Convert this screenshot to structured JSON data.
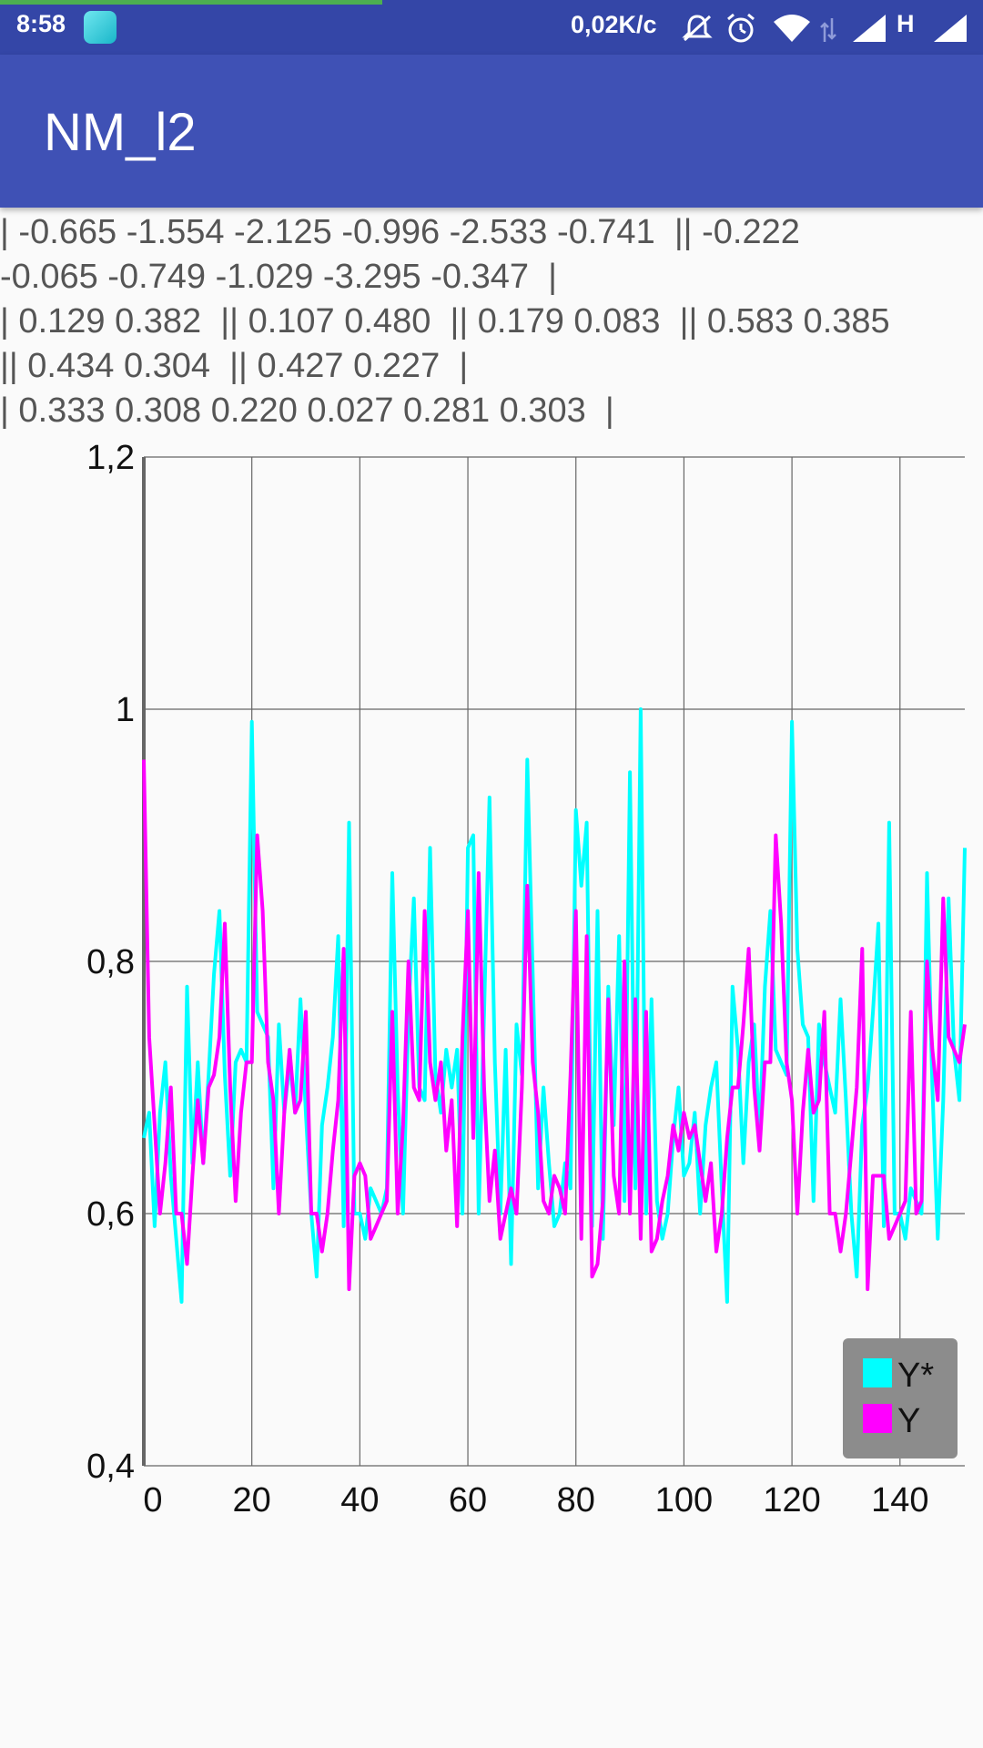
{
  "status_bar": {
    "time": "8:58",
    "network_speed": "0,02K/c",
    "network_type": "H",
    "icons": [
      "app-icon",
      "mute-icon",
      "alarm-icon",
      "wifi-icon",
      "data-arrows-icon",
      "signal-icon",
      "signal-icon-2"
    ],
    "background_color": "#3446a7",
    "progress_color": "#4caf50"
  },
  "app_bar": {
    "title": "NM_l2",
    "color": "#3f51b5"
  },
  "info_lines": [
    "| -0.665 -1.554 -2.125 -0.996 -2.533 -0.741  || -0.222",
    "-0.065 -0.749 -1.029 -3.295 -0.347  |",
    "| 0.129 0.382  || 0.107 0.480  || 0.179 0.083  || 0.583 0.385",
    "|| 0.434 0.304  || 0.427 0.227  |",
    "| 0.333 0.308 0.220 0.027 0.281 0.303  |"
  ],
  "chart_data": {
    "type": "line",
    "xlim": [
      0,
      152
    ],
    "ylim": [
      0.4,
      1.2
    ],
    "x_ticks": [
      0,
      20,
      40,
      60,
      80,
      100,
      120,
      140
    ],
    "x_tick_labels": [
      "0",
      "20",
      "40",
      "60",
      "80",
      "100",
      "120",
      "140"
    ],
    "y_ticks": [
      0.4,
      0.6,
      0.8,
      1.0,
      1.2
    ],
    "y_tick_labels": [
      "0,4",
      "0,6",
      "0,8",
      "1",
      "1,2"
    ],
    "grid": true,
    "legend_position": "bottom-right",
    "legend_background": "#8c8c8c",
    "x": [
      0,
      1,
      2,
      3,
      4,
      5,
      6,
      7,
      8,
      9,
      10,
      11,
      12,
      13,
      14,
      15,
      16,
      17,
      18,
      19,
      20,
      21,
      22,
      23,
      24,
      25,
      26,
      27,
      28,
      29,
      30,
      31,
      32,
      33,
      34,
      35,
      36,
      37,
      38,
      39,
      40,
      41,
      42,
      43,
      44,
      45,
      46,
      47,
      48,
      49,
      50,
      51,
      52,
      53,
      54,
      55,
      56,
      57,
      58,
      59,
      60,
      61,
      62,
      63,
      64,
      65,
      66,
      67,
      68,
      69,
      70,
      71,
      72,
      73,
      74,
      75,
      76,
      77,
      78,
      79,
      80,
      81,
      82,
      83,
      84,
      85,
      86,
      87,
      88,
      89,
      90,
      91,
      92,
      93,
      94,
      95,
      96,
      97,
      98,
      99,
      100,
      101,
      102,
      103,
      104,
      105,
      106,
      107,
      108,
      109,
      110,
      111,
      112,
      113,
      114,
      115,
      116,
      117,
      118,
      119,
      120,
      121,
      122,
      123,
      124,
      125,
      126,
      127,
      128,
      129,
      130,
      131,
      132,
      133,
      134,
      135,
      136,
      137,
      138,
      139,
      140,
      141,
      142,
      143,
      144,
      145,
      146,
      147,
      148,
      149,
      150,
      151,
      152
    ],
    "series": [
      {
        "name": "Y*",
        "color": "#00ffff",
        "values": [
          0.66,
          0.68,
          0.59,
          0.68,
          0.72,
          0.63,
          0.58,
          0.53,
          0.78,
          0.64,
          0.72,
          0.64,
          0.71,
          0.79,
          0.84,
          0.71,
          0.63,
          0.72,
          0.73,
          0.72,
          0.99,
          0.76,
          0.75,
          0.74,
          0.62,
          0.75,
          0.68,
          0.72,
          0.68,
          0.77,
          0.68,
          0.6,
          0.55,
          0.67,
          0.7,
          0.74,
          0.82,
          0.59,
          0.91,
          0.6,
          0.6,
          0.58,
          0.62,
          0.61,
          0.6,
          0.62,
          0.87,
          0.7,
          0.6,
          0.76,
          0.85,
          0.7,
          0.69,
          0.89,
          0.71,
          0.68,
          0.73,
          0.7,
          0.73,
          0.6,
          0.89,
          0.9,
          0.6,
          0.76,
          0.93,
          0.72,
          0.6,
          0.73,
          0.56,
          0.75,
          0.71,
          0.96,
          0.79,
          0.62,
          0.7,
          0.64,
          0.59,
          0.6,
          0.64,
          0.62,
          0.92,
          0.86,
          0.91,
          0.59,
          0.84,
          0.58,
          0.78,
          0.67,
          0.82,
          0.61,
          0.95,
          0.62,
          1.0,
          0.6,
          0.77,
          0.61,
          0.58,
          0.6,
          0.66,
          0.7,
          0.63,
          0.64,
          0.68,
          0.6,
          0.67,
          0.7,
          0.72,
          0.62,
          0.53,
          0.78,
          0.73,
          0.64,
          0.72,
          0.75,
          0.66,
          0.78,
          0.84,
          0.73,
          0.72,
          0.71,
          0.99,
          0.81,
          0.75,
          0.74,
          0.61,
          0.75,
          0.72,
          0.7,
          0.68,
          0.77,
          0.69,
          0.6,
          0.55,
          0.67,
          0.7,
          0.76,
          0.83,
          0.59,
          0.91,
          0.6,
          0.6,
          0.58,
          0.62,
          0.61,
          0.6,
          0.87,
          0.7,
          0.58,
          0.69,
          0.85,
          0.73,
          0.69,
          0.89
        ]
      },
      {
        "name": "Y",
        "color": "#ff00ff",
        "values": [
          0.96,
          0.74,
          0.67,
          0.6,
          0.64,
          0.7,
          0.6,
          0.6,
          0.56,
          0.63,
          0.69,
          0.64,
          0.7,
          0.71,
          0.74,
          0.83,
          0.7,
          0.61,
          0.68,
          0.72,
          0.72,
          0.9,
          0.84,
          0.72,
          0.69,
          0.6,
          0.68,
          0.73,
          0.68,
          0.69,
          0.76,
          0.6,
          0.6,
          0.57,
          0.6,
          0.65,
          0.69,
          0.81,
          0.54,
          0.63,
          0.64,
          0.63,
          0.58,
          0.59,
          0.6,
          0.61,
          0.76,
          0.6,
          0.67,
          0.8,
          0.7,
          0.69,
          0.84,
          0.72,
          0.69,
          0.72,
          0.65,
          0.69,
          0.59,
          0.74,
          0.84,
          0.66,
          0.87,
          0.7,
          0.61,
          0.65,
          0.58,
          0.6,
          0.62,
          0.6,
          0.7,
          0.86,
          0.72,
          0.68,
          0.61,
          0.6,
          0.63,
          0.62,
          0.6,
          0.71,
          0.84,
          0.58,
          0.82,
          0.55,
          0.56,
          0.61,
          0.77,
          0.63,
          0.6,
          0.8,
          0.6,
          0.77,
          0.58,
          0.76,
          0.57,
          0.58,
          0.61,
          0.63,
          0.67,
          0.65,
          0.68,
          0.66,
          0.67,
          0.64,
          0.61,
          0.64,
          0.57,
          0.6,
          0.66,
          0.7,
          0.7,
          0.75,
          0.81,
          0.7,
          0.65,
          0.72,
          0.72,
          0.9,
          0.83,
          0.72,
          0.69,
          0.6,
          0.68,
          0.73,
          0.68,
          0.69,
          0.76,
          0.6,
          0.6,
          0.57,
          0.6,
          0.65,
          0.7,
          0.81,
          0.54,
          0.63,
          0.63,
          0.63,
          0.58,
          0.59,
          0.6,
          0.61,
          0.76,
          0.6,
          0.61,
          0.8,
          0.73,
          0.69,
          0.85,
          0.74,
          0.73,
          0.72,
          0.75
        ]
      }
    ]
  }
}
